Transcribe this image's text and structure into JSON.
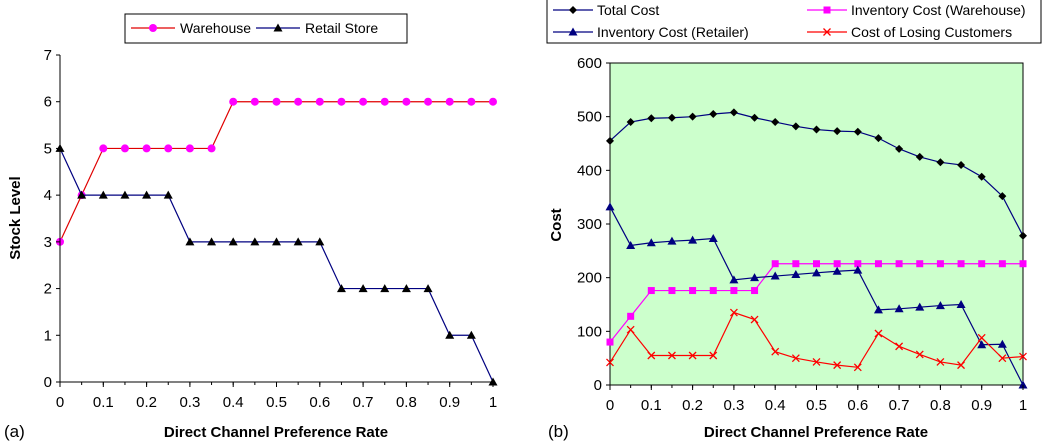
{
  "chart_data": [
    {
      "type": "line",
      "panel_label": "(a)",
      "xlabel": "Direct Channel Preference Rate",
      "ylabel": "Stock Level",
      "xlim": [
        0,
        1
      ],
      "ylim": [
        0,
        7
      ],
      "x_ticks": [
        "0",
        "0.1",
        "0.2",
        "0.3",
        "0.4",
        "0.5",
        "0.6",
        "0.7",
        "0.8",
        "0.9",
        "1"
      ],
      "y_ticks": [
        "0",
        "1",
        "2",
        "3",
        "4",
        "5",
        "6",
        "7"
      ],
      "grid": false,
      "legend_position": "top",
      "x": [
        0,
        0.05,
        0.1,
        0.15,
        0.2,
        0.25,
        0.3,
        0.35,
        0.4,
        0.45,
        0.5,
        0.55,
        0.6,
        0.65,
        0.7,
        0.75,
        0.8,
        0.85,
        0.9,
        0.95,
        1
      ],
      "series": [
        {
          "name": "Warehouse",
          "color": "#ff00ff",
          "line_color": "#e00000",
          "marker": "circle",
          "values": [
            3,
            4,
            5,
            5,
            5,
            5,
            5,
            5,
            6,
            6,
            6,
            6,
            6,
            6,
            6,
            6,
            6,
            6,
            6,
            6,
            6
          ]
        },
        {
          "name": "Retail Store",
          "color": "#000000",
          "line_color": "#000080",
          "marker": "triangle",
          "values": [
            5,
            4,
            4,
            4,
            4,
            4,
            3,
            3,
            3,
            3,
            3,
            3,
            3,
            2,
            2,
            2,
            2,
            2,
            1,
            1,
            0
          ]
        }
      ]
    },
    {
      "type": "line",
      "panel_label": "(b)",
      "xlabel": "Direct Channel Preference Rate",
      "ylabel": "Cost",
      "xlim": [
        0,
        1
      ],
      "ylim": [
        0,
        600
      ],
      "x_ticks": [
        "0",
        "0.1",
        "0.2",
        "0.3",
        "0.4",
        "0.5",
        "0.6",
        "0.7",
        "0.8",
        "0.9",
        "1"
      ],
      "y_ticks": [
        "0",
        "100",
        "200",
        "300",
        "400",
        "500",
        "600"
      ],
      "grid": false,
      "plot_background": "#ccffcc",
      "legend_position": "top",
      "x": [
        0,
        0.05,
        0.1,
        0.15,
        0.2,
        0.25,
        0.3,
        0.35,
        0.4,
        0.45,
        0.5,
        0.55,
        0.6,
        0.65,
        0.7,
        0.75,
        0.8,
        0.85,
        0.9,
        0.95,
        1
      ],
      "series": [
        {
          "name": "Total Cost",
          "color": "#000000",
          "line_color": "#000080",
          "marker": "diamond",
          "values": [
            455,
            490,
            497,
            498,
            500,
            505,
            508,
            498,
            490,
            482,
            476,
            473,
            472,
            460,
            440,
            425,
            415,
            410,
            388,
            352,
            278
          ]
        },
        {
          "name": "Inventory Cost (Warehouse)",
          "color": "#ff00ff",
          "line_color": "#ff00ff",
          "marker": "square",
          "values": [
            80,
            128,
            176,
            176,
            176,
            176,
            176,
            176,
            226,
            226,
            226,
            226,
            226,
            226,
            226,
            226,
            226,
            226,
            226,
            226,
            226
          ]
        },
        {
          "name": "Inventory Cost (Retailer)",
          "color": "#000080",
          "line_color": "#000080",
          "marker": "triangle",
          "values": [
            332,
            260,
            265,
            268,
            270,
            273,
            196,
            200,
            203,
            206,
            209,
            212,
            214,
            140,
            142,
            145,
            148,
            150,
            75,
            76,
            0
          ]
        },
        {
          "name": "Cost of Losing Customers",
          "color": "#ff0000",
          "line_color": "#ff0000",
          "marker": "x",
          "values": [
            42,
            103,
            55,
            55,
            55,
            55,
            135,
            122,
            62,
            50,
            43,
            37,
            33,
            96,
            72,
            57,
            43,
            37,
            88,
            50,
            53
          ]
        }
      ]
    }
  ]
}
